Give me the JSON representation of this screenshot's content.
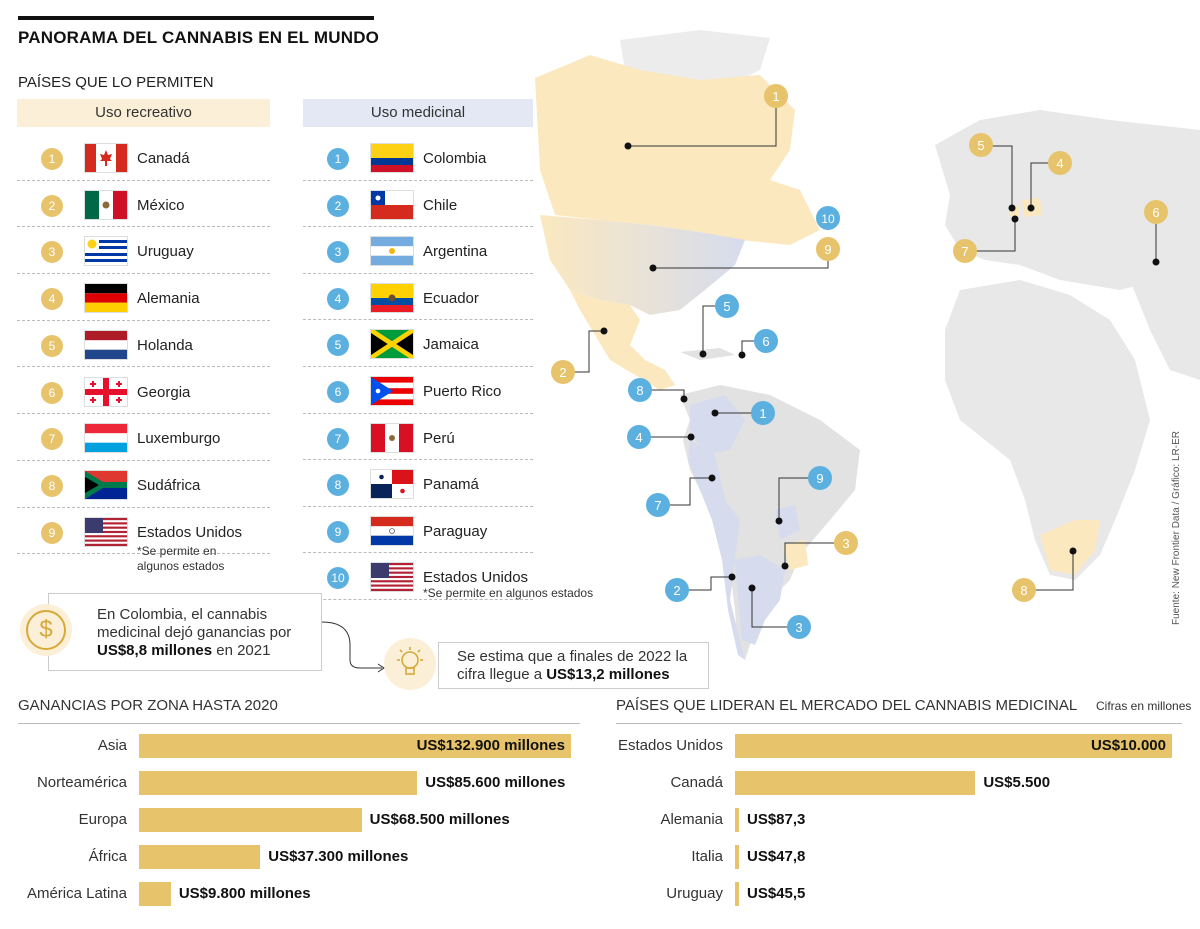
{
  "header": {
    "title": "PANORAMA DEL CANNABIS EN EL MUNDO",
    "subtitle": "PAÍSES QUE LO PERMITEN"
  },
  "recreativo": {
    "heading": "Uso recreativo",
    "items": [
      {
        "n": "1",
        "name": "Canadá",
        "flag": "canada-flag-icon"
      },
      {
        "n": "2",
        "name": "México",
        "flag": "mexico-flag-icon"
      },
      {
        "n": "3",
        "name": "Uruguay",
        "flag": "uruguay-flag-icon"
      },
      {
        "n": "4",
        "name": "Alemania",
        "flag": "germany-flag-icon"
      },
      {
        "n": "5",
        "name": "Holanda",
        "flag": "netherlands-flag-icon"
      },
      {
        "n": "6",
        "name": "Georgia",
        "flag": "georgia-flag-icon"
      },
      {
        "n": "7",
        "name": "Luxemburgo",
        "flag": "luxembourg-flag-icon"
      },
      {
        "n": "8",
        "name": "Sudáfrica",
        "flag": "south-africa-flag-icon"
      },
      {
        "n": "9",
        "name": "Estados Unidos",
        "flag": "usa-flag-icon",
        "note": "*Se permite en algunos estados"
      }
    ]
  },
  "medicinal": {
    "heading": "Uso medicinal",
    "items": [
      {
        "n": "1",
        "name": "Colombia",
        "flag": "colombia-flag-icon"
      },
      {
        "n": "2",
        "name": "Chile",
        "flag": "chile-flag-icon"
      },
      {
        "n": "3",
        "name": "Argentina",
        "flag": "argentina-flag-icon"
      },
      {
        "n": "4",
        "name": "Ecuador",
        "flag": "ecuador-flag-icon"
      },
      {
        "n": "5",
        "name": "Jamaica",
        "flag": "jamaica-flag-icon"
      },
      {
        "n": "6",
        "name": "Puerto Rico",
        "flag": "puerto-rico-flag-icon"
      },
      {
        "n": "7",
        "name": "Perú",
        "flag": "peru-flag-icon"
      },
      {
        "n": "8",
        "name": "Panamá",
        "flag": "panama-flag-icon"
      },
      {
        "n": "9",
        "name": "Paraguay",
        "flag": "paraguay-flag-icon"
      },
      {
        "n": "10",
        "name": "Estados Unidos",
        "flag": "usa-flag-icon",
        "note": "*Se permite en algunos estados"
      }
    ]
  },
  "callouts": {
    "colombia_pre": "En Colombia, el cannabis medicinal dejó ganancias por ",
    "colombia_amount": "US$8,8 millones",
    "colombia_post": " en 2021",
    "estimate_pre": "Se estima que a finales de 2022 la cifra llegue a ",
    "estimate_amount": "US$13,2 millones"
  },
  "colors": {
    "recreativo": "#e7c46b",
    "medicinal": "#5cb0e0",
    "bar": "#e7c46b"
  },
  "source": "Fuente: New Frontier Data / Gráfico: LR-ER",
  "chart_data": [
    {
      "type": "bar",
      "orientation": "horizontal",
      "title": "GANANCIAS POR ZONA HASTA 2020",
      "unit": "millones de US$",
      "categories": [
        "Asia",
        "Norteamérica",
        "Europa",
        "África",
        "América Latina"
      ],
      "values": [
        132900,
        85600,
        68500,
        37300,
        9800
      ],
      "labels": [
        "US$132.900 millones",
        "US$85.600 millones",
        "US$68.500 millones",
        "US$37.300 millones",
        "US$9.800 millones"
      ]
    },
    {
      "type": "bar",
      "orientation": "horizontal",
      "title": "PAÍSES QUE LIDERAN EL MERCADO DEL CANNABIS MEDICINAL",
      "unit_note": "Cifras en millones",
      "categories": [
        "Estados Unidos",
        "Canadá",
        "Alemania",
        "Italia",
        "Uruguay"
      ],
      "values": [
        10000,
        5500,
        87.3,
        47.8,
        45.5
      ],
      "labels": [
        "US$10.000",
        "US$5.500",
        "US$87,3",
        "US$47,8",
        "US$45,5"
      ]
    }
  ]
}
